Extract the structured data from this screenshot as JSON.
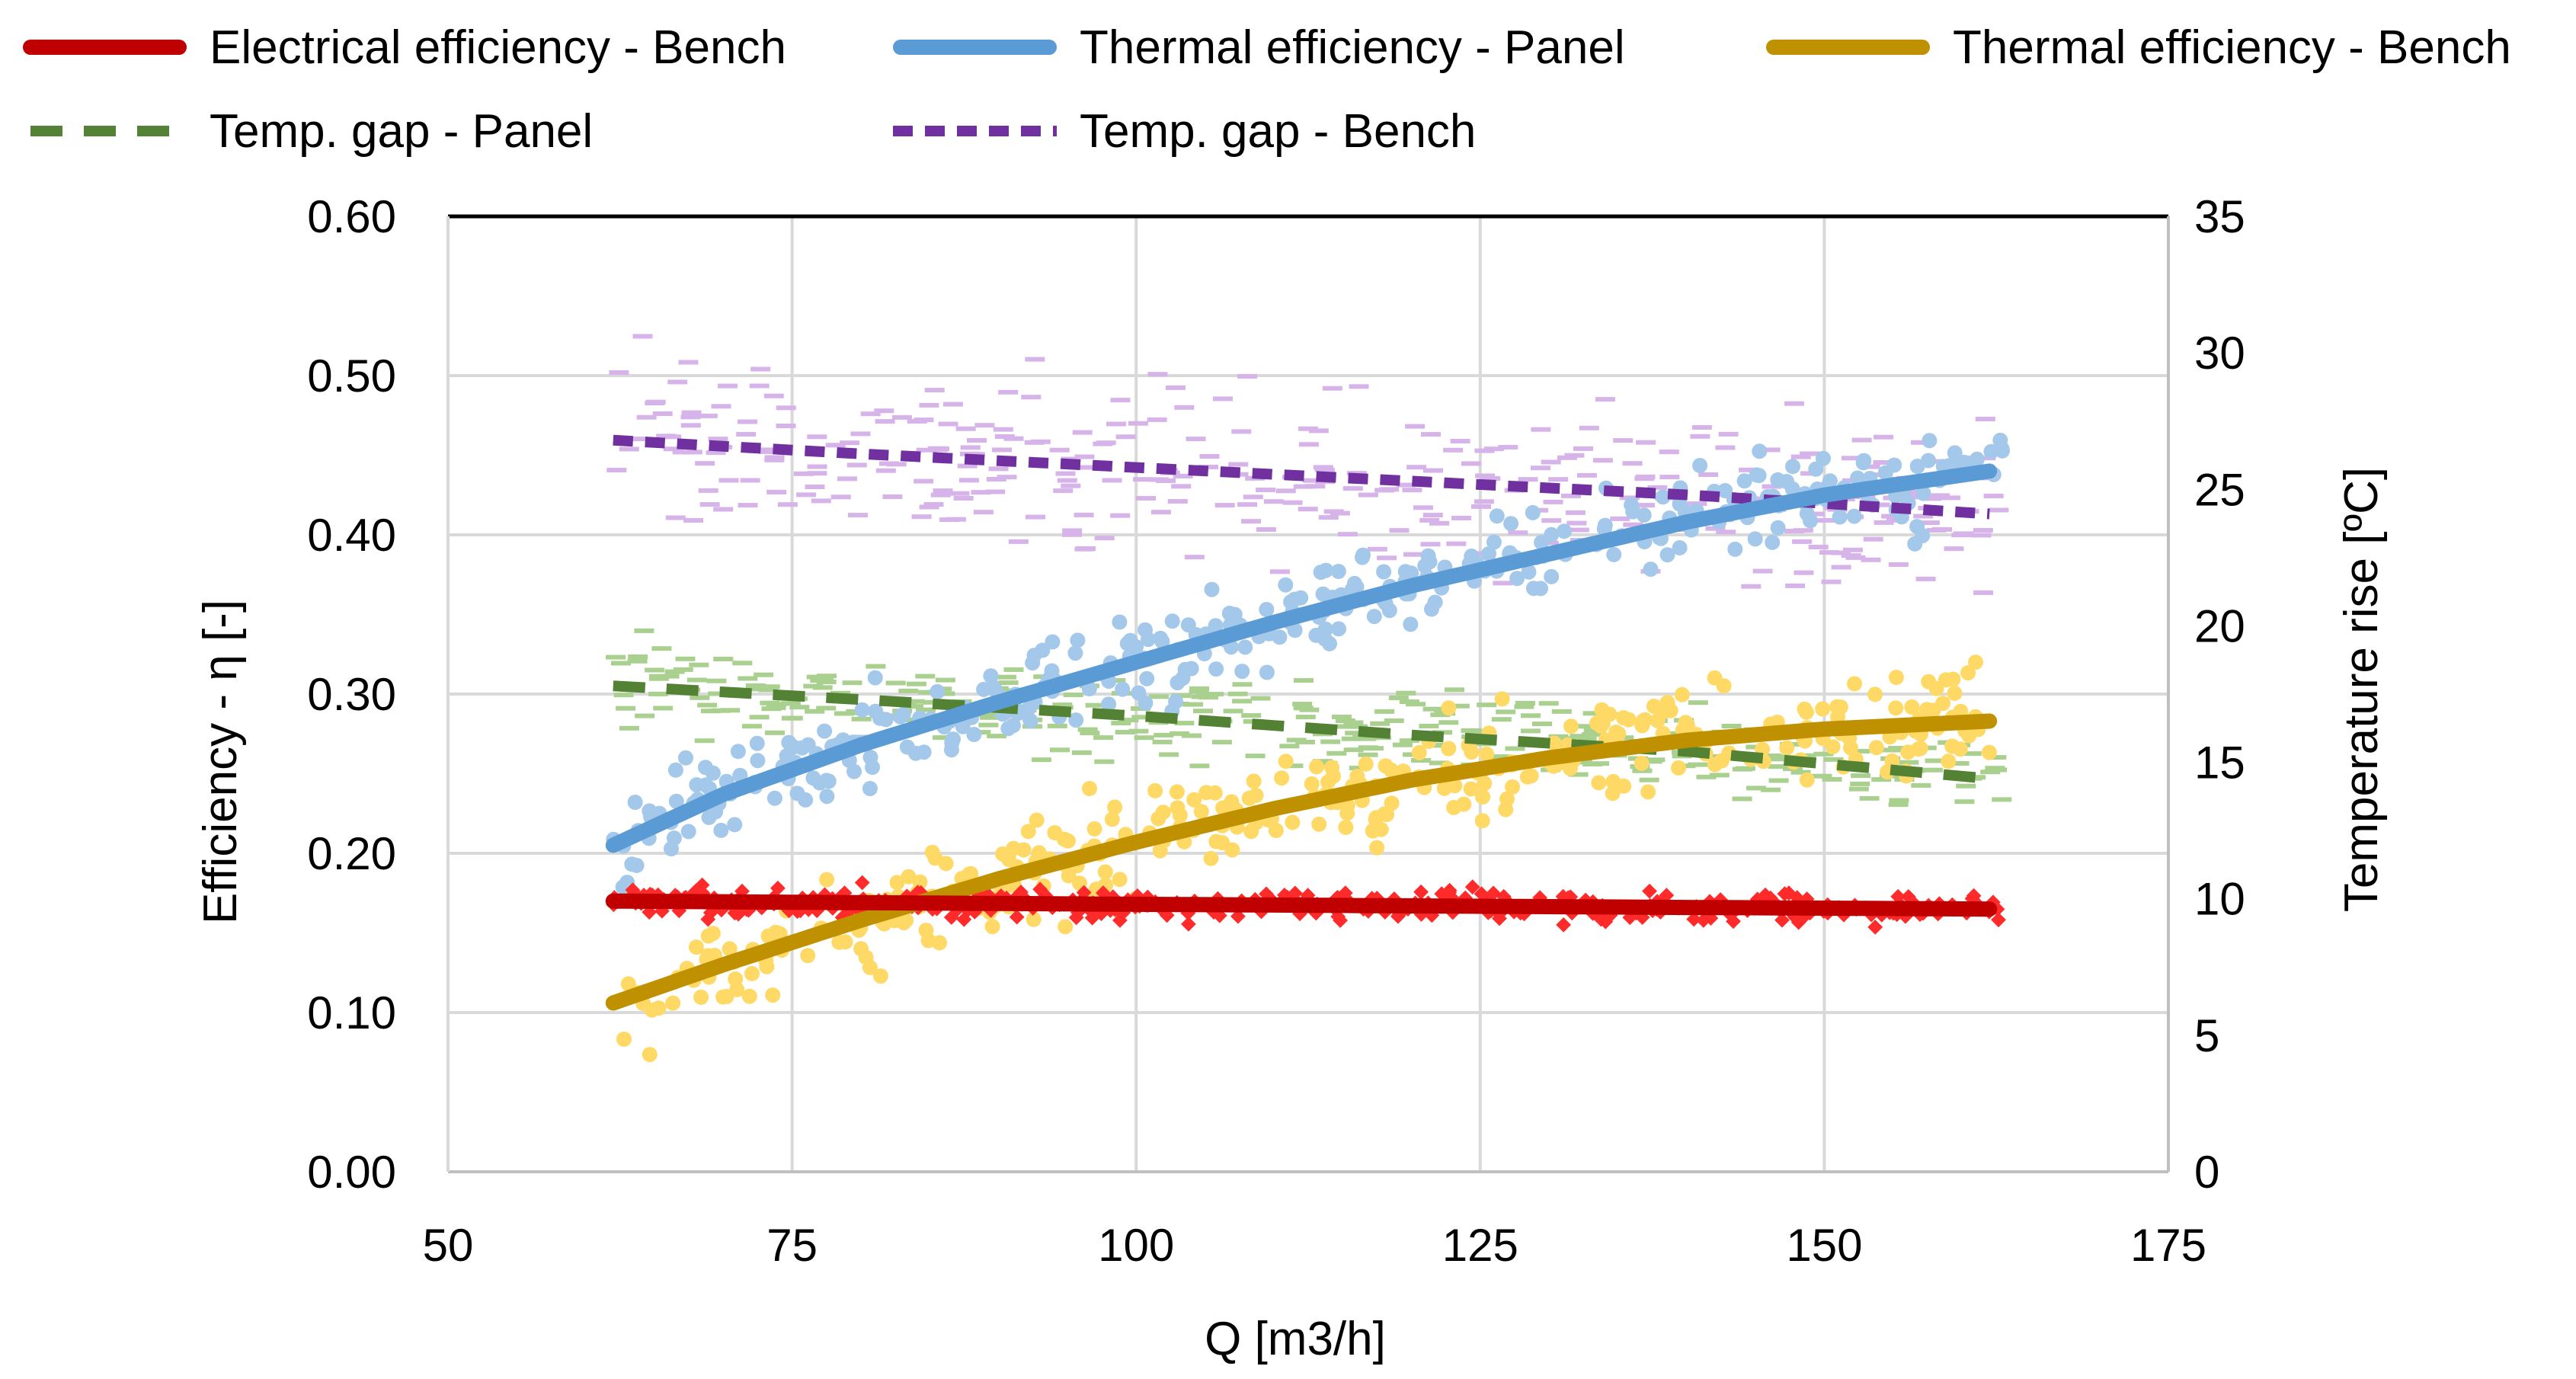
{
  "colors": {
    "electrical_bench": "#c00000",
    "electrical_scatter": "#ff2b2b",
    "thermal_panel": "#5b9bd5",
    "thermal_panel_scatter": "#a4c8ea",
    "thermal_bench": "#bf9000",
    "thermal_bench_scatter": "#ffd966",
    "tgap_panel": "#548235",
    "tgap_panel_scatter": "#a9d08e",
    "tgap_bench": "#7030a0",
    "tgap_bench_scatter": "#d6b4ea",
    "grid": "#d9d9d9",
    "axis": "#000000"
  },
  "chart_data": {
    "type": "line",
    "title": "",
    "xlabel": "Q [m3/h]",
    "ylabel": "Efficiency  -  η [-]",
    "y2label": "Temperature rise [ºC]",
    "xlim": [
      50,
      175
    ],
    "ylim": [
      0,
      0.6
    ],
    "y2lim": [
      0,
      35
    ],
    "x_ticks": [
      "50",
      "75",
      "100",
      "125",
      "150",
      "175"
    ],
    "y_ticks": [
      "0.00",
      "0.10",
      "0.20",
      "0.30",
      "0.40",
      "0.50",
      "0.60"
    ],
    "y2_ticks": [
      "0",
      "5",
      "10",
      "15",
      "20",
      "25",
      "30",
      "35"
    ],
    "grid": true,
    "legend_position": "top",
    "legend": [
      {
        "label": "Electrical efficiency - Bench",
        "style": "solid",
        "color_key": "electrical_bench"
      },
      {
        "label": "Thermal efficiency - Panel",
        "style": "solid",
        "color_key": "thermal_panel"
      },
      {
        "label": "Thermal efficiency - Bench",
        "style": "solid",
        "color_key": "thermal_bench"
      },
      {
        "label": "Temp. gap - Panel",
        "style": "dashed",
        "color_key": "tgap_panel"
      },
      {
        "label": "Temp. gap - Bench",
        "style": "dashed",
        "color_key": "tgap_bench"
      }
    ],
    "series": [
      {
        "name": "Electrical efficiency - Bench",
        "axis": "left",
        "x": [
          62,
          80,
          100,
          120,
          140,
          162
        ],
        "values": [
          0.17,
          0.169,
          0.168,
          0.167,
          0.166,
          0.165
        ]
      },
      {
        "name": "Thermal efficiency - Panel",
        "axis": "left",
        "x": [
          62,
          70,
          80,
          90,
          100,
          110,
          120,
          130,
          140,
          150,
          162
        ],
        "values": [
          0.205,
          0.237,
          0.268,
          0.295,
          0.32,
          0.345,
          0.368,
          0.388,
          0.408,
          0.425,
          0.44
        ]
      },
      {
        "name": "Thermal efficiency - Bench",
        "axis": "left",
        "x": [
          62,
          70,
          80,
          90,
          100,
          110,
          120,
          130,
          140,
          150,
          162
        ],
        "values": [
          0.106,
          0.13,
          0.158,
          0.184,
          0.207,
          0.228,
          0.246,
          0.26,
          0.271,
          0.278,
          0.283
        ]
      },
      {
        "name": "Temp. gap - Panel",
        "axis": "right",
        "x": [
          62,
          80,
          100,
          120,
          140,
          162
        ],
        "values": [
          17.8,
          17.3,
          16.7,
          16.0,
          15.4,
          14.4
        ]
      },
      {
        "name": "Temp. gap - Bench",
        "axis": "right",
        "x": [
          62,
          80,
          100,
          120,
          140,
          162
        ],
        "values": [
          26.8,
          26.3,
          25.8,
          25.3,
          24.8,
          24.1
        ]
      }
    ],
    "scatter_clouds": [
      {
        "name": "Electrical efficiency - Bench (measured)",
        "axis": "left",
        "x_range": [
          62,
          163
        ],
        "spread": 0.009,
        "color_key": "electrical_scatter",
        "marker": "diamond"
      },
      {
        "name": "Thermal efficiency - Panel (measured)",
        "axis": "left",
        "x_range": [
          62,
          163
        ],
        "spread": 0.028,
        "color_key": "thermal_panel_scatter",
        "marker": "circle"
      },
      {
        "name": "Thermal efficiency - Bench (measured)",
        "axis": "left",
        "x_range": [
          62,
          163
        ],
        "spread": 0.03,
        "color_key": "thermal_bench_scatter",
        "marker": "circle"
      },
      {
        "name": "Temp. gap - Panel (measured)",
        "axis": "right",
        "x_range": [
          62,
          163
        ],
        "spread": 1.4,
        "color_key": "tgap_panel_scatter",
        "marker": "dash"
      },
      {
        "name": "Temp. gap - Bench (measured)",
        "axis": "right",
        "x_range": [
          62,
          163
        ],
        "spread": 2.8,
        "color_key": "tgap_bench_scatter",
        "marker": "dash"
      }
    ]
  }
}
